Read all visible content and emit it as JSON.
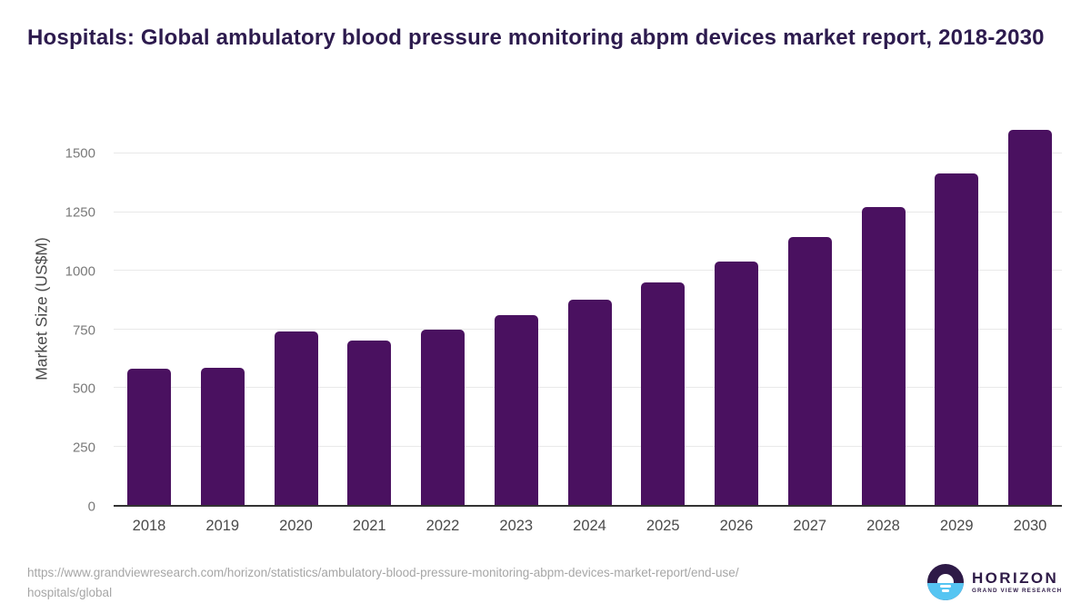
{
  "chart_data": {
    "type": "bar",
    "title": "Hospitals: Global ambulatory blood pressure monitoring abpm devices market report, 2018-2030",
    "xlabel": "",
    "ylabel": "Market Size (US$M)",
    "categories": [
      "2018",
      "2019",
      "2020",
      "2021",
      "2022",
      "2023",
      "2024",
      "2025",
      "2026",
      "2027",
      "2028",
      "2029",
      "2030"
    ],
    "values": [
      580,
      585,
      740,
      700,
      750,
      810,
      875,
      950,
      1040,
      1145,
      1270,
      1415,
      1600
    ],
    "yticks": [
      0,
      250,
      500,
      750,
      1000,
      1250,
      1500
    ],
    "ylim": [
      0,
      1613
    ],
    "grid": true,
    "legend": "none",
    "bar_color": "#4a1160"
  },
  "footer": {
    "source_lines": [
      "https://www.grandviewresearch.com/horizon/statistics/ambulatory-blood-pressure-monitoring-abpm-devices-market-report/end-use/",
      "hospitals/global"
    ],
    "logo": {
      "brand": "HORIZON",
      "sub_brand": "GRAND VIEW RESEARCH"
    }
  },
  "colors": {
    "c-title": "#2d1b4e",
    "c-grid": "#e9e9e9",
    "c-axis": "#333333",
    "c-ytick": "#7a7a7a",
    "c-xtick": "#4a4a4a",
    "c-ylabel": "#4b4b4b",
    "c-source": "#a6a6a6",
    "c-logo-purple": "#2e1a47",
    "c-logo-blue": "#56c5f2"
  }
}
